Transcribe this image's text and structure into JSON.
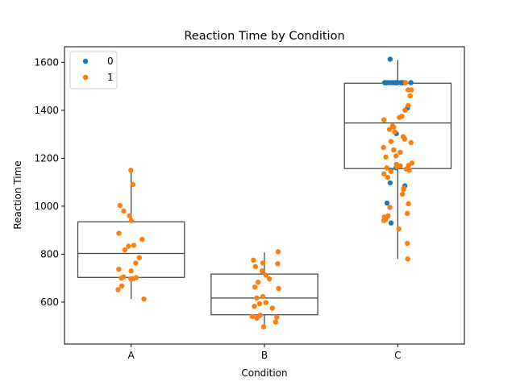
{
  "chart_data": {
    "type": "box-strip",
    "title": "Reaction Time by Condition",
    "xlabel": "Condition",
    "ylabel": "Reaction Time",
    "categories": [
      "A",
      "B",
      "C"
    ],
    "ylim": [
      425,
      1665
    ],
    "yticks": [
      600,
      800,
      1000,
      1200,
      1400,
      1600
    ],
    "legend": {
      "placement": "top-left",
      "entries": [
        {
          "label": "0",
          "color": "#1f77b4"
        },
        {
          "label": "1",
          "color": "#ff7f0e"
        }
      ]
    },
    "boxes": [
      {
        "category": "A",
        "whisker_low": 613,
        "q1": 703,
        "median": 803,
        "q3": 935,
        "whisker_high": 1150
      },
      {
        "category": "B",
        "whisker_low": 497,
        "q1": 547,
        "median": 617,
        "q3": 717,
        "whisker_high": 807
      },
      {
        "category": "C",
        "whisker_low": 780,
        "q1": 1157,
        "median": 1347,
        "q3": 1513,
        "whisker_high": 1610
      }
    ],
    "points": [
      {
        "category": "A",
        "group": "1",
        "values": [
          1150,
          1090,
          1003,
          980,
          960,
          940,
          887,
          862,
          837,
          833,
          818,
          785,
          763,
          737,
          730,
          705,
          702,
          700,
          698,
          697,
          667,
          652,
          613
        ]
      },
      {
        "category": "B",
        "group": "1",
        "values": [
          810,
          775,
          763,
          760,
          748,
          730,
          712,
          697,
          683,
          663,
          657,
          623,
          617,
          598,
          593,
          583,
          575,
          545,
          545,
          540,
          537,
          533,
          517,
          497
        ]
      },
      {
        "category": "C",
        "group": "0",
        "values": [
          1613,
          1515,
          1515,
          1515,
          1515,
          1515,
          1515,
          1515,
          1515,
          1515,
          1515,
          1515,
          1515,
          1515,
          1515,
          1515,
          1515,
          1515,
          1410,
          1303,
          1160,
          1150,
          1097,
          1085,
          1013,
          930
        ]
      },
      {
        "category": "C",
        "group": "1",
        "values": [
          1515,
          1485,
          1485,
          1460,
          1420,
          1400,
          1375,
          1370,
          1360,
          1335,
          1330,
          1320,
          1310,
          1290,
          1280,
          1270,
          1265,
          1245,
          1235,
          1225,
          1210,
          1205,
          1180,
          1175,
          1170,
          1168,
          1165,
          1160,
          1155,
          1150,
          1145,
          1135,
          1120,
          1075,
          1070,
          1050,
          1010,
          995,
          970,
          960,
          955,
          945,
          940,
          905,
          845,
          780
        ]
      }
    ]
  }
}
